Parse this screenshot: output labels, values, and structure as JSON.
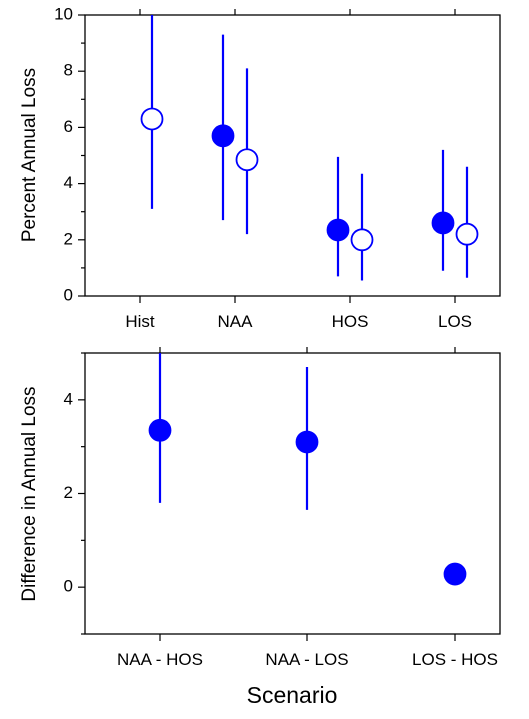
{
  "colors": {
    "marker": "#0000FF",
    "axis": "#000000",
    "open_fill": "#FFFFFF"
  },
  "chart_data": [
    {
      "type": "scatter",
      "subtype": "point-with-error-bars",
      "title": "",
      "xlabel": "",
      "ylabel": "Percent Annual Loss",
      "categories": [
        "Hist",
        "NAA",
        "HOS",
        "LOS"
      ],
      "ylim": [
        0,
        10
      ],
      "yticks": [
        0,
        2,
        4,
        6,
        8,
        10
      ],
      "grid": false,
      "series": [
        {
          "marker": "filled",
          "points": [
            {
              "category": "NAA",
              "y": 5.7,
              "low": 2.7,
              "high": 9.3
            },
            {
              "category": "HOS",
              "y": 2.35,
              "low": 0.7,
              "high": 4.95
            },
            {
              "category": "LOS",
              "y": 2.6,
              "low": 0.9,
              "high": 5.2
            }
          ]
        },
        {
          "marker": "open",
          "points": [
            {
              "category": "Hist",
              "y": 6.3,
              "low": 3.1,
              "high": 10.0
            },
            {
              "category": "NAA",
              "y": 4.85,
              "low": 2.2,
              "high": 8.1
            },
            {
              "category": "HOS",
              "y": 2.0,
              "low": 0.55,
              "high": 4.35
            },
            {
              "category": "LOS",
              "y": 2.2,
              "low": 0.65,
              "high": 4.6
            }
          ]
        }
      ]
    },
    {
      "type": "scatter",
      "subtype": "point-with-error-bars",
      "title": "",
      "xlabel": "Scenario",
      "ylabel": "Difference in Annual Loss",
      "categories": [
        "NAA - HOS",
        "NAA - LOS",
        "LOS - HOS"
      ],
      "ylim": [
        -1,
        5
      ],
      "yticks": [
        0,
        2,
        4
      ],
      "grid": false,
      "series": [
        {
          "marker": "filled",
          "points": [
            {
              "category": "NAA - HOS",
              "y": 3.35,
              "low": 1.8,
              "high": 5.0
            },
            {
              "category": "NAA - LOS",
              "y": 3.1,
              "low": 1.65,
              "high": 4.7
            },
            {
              "category": "LOS - HOS",
              "y": 0.28,
              "low": 0.28,
              "high": 0.28
            }
          ]
        }
      ]
    }
  ]
}
